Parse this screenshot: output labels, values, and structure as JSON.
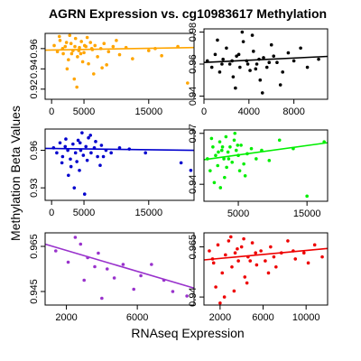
{
  "figure": {
    "title": "AGRN Expression vs. cg10983617 Methylation",
    "xlabel": "RNAseq Expression",
    "ylabel": "Methylation Beta Values"
  },
  "chart_data": [
    {
      "type": "scatter",
      "color": "#FFA500",
      "xlim": [
        -1000,
        22000
      ],
      "ylim": [
        0.91,
        0.975
      ],
      "xticks": [
        0,
        5000,
        15000
      ],
      "yticks": [
        0.92,
        0.94,
        0.96
      ],
      "trend": {
        "y_at_xmin": 0.9585,
        "y_at_xmax": 0.961
      },
      "points": [
        [
          400,
          0.963
        ],
        [
          900,
          0.957
        ],
        [
          1300,
          0.968
        ],
        [
          1800,
          0.955
        ],
        [
          2100,
          0.962
        ],
        [
          2600,
          0.949
        ],
        [
          3000,
          0.965
        ],
        [
          3300,
          0.958
        ],
        [
          3700,
          0.97
        ],
        [
          4000,
          0.952
        ],
        [
          4300,
          0.961
        ],
        [
          4600,
          0.967
        ],
        [
          5000,
          0.956
        ],
        [
          5300,
          0.962
        ],
        [
          5700,
          0.945
        ],
        [
          6000,
          0.966
        ],
        [
          6300,
          0.959
        ],
        [
          6700,
          0.963
        ],
        [
          7100,
          0.952
        ],
        [
          7600,
          0.96
        ],
        [
          8100,
          0.965
        ],
        [
          8800,
          0.957
        ],
        [
          9500,
          0.962
        ],
        [
          10500,
          0.954
        ],
        [
          11500,
          0.961
        ],
        [
          1200,
          0.972
        ],
        [
          2400,
          0.94
        ],
        [
          3500,
          0.93
        ],
        [
          4800,
          0.947
        ],
        [
          6500,
          0.935
        ],
        [
          3900,
          0.922
        ],
        [
          2800,
          0.973
        ],
        [
          5500,
          0.971
        ],
        [
          7800,
          0.941
        ],
        [
          12500,
          0.95
        ],
        [
          15000,
          0.958
        ],
        [
          17000,
          0.953
        ],
        [
          19500,
          0.962
        ],
        [
          21000,
          0.926
        ],
        [
          16000,
          0.96
        ],
        [
          10000,
          0.968
        ],
        [
          8500,
          0.944
        ],
        [
          1700,
          0.96
        ],
        [
          3100,
          0.955
        ],
        [
          4200,
          0.958
        ],
        [
          5100,
          0.963
        ],
        [
          6200,
          0.96
        ],
        [
          2300,
          0.966
        ],
        [
          3600,
          0.962
        ],
        [
          4500,
          0.955
        ]
      ]
    },
    {
      "type": "scatter",
      "color": "#000000",
      "xlim": [
        0,
        11000
      ],
      "ylim": [
        0.938,
        0.982
      ],
      "xticks": [
        0,
        4000,
        8000
      ],
      "yticks": [
        0.94,
        0.96,
        0.98
      ],
      "trend": {
        "y_at_xmin": 0.961,
        "y_at_xmax": 0.9648
      },
      "points": [
        [
          300,
          0.962
        ],
        [
          700,
          0.958
        ],
        [
          1000,
          0.966
        ],
        [
          1400,
          0.955
        ],
        [
          1700,
          0.963
        ],
        [
          2000,
          0.97
        ],
        [
          2300,
          0.96
        ],
        [
          2600,
          0.952
        ],
        [
          2900,
          0.965
        ],
        [
          3200,
          0.958
        ],
        [
          3500,
          0.974
        ],
        [
          3800,
          0.962
        ],
        [
          4100,
          0.956
        ],
        [
          4400,
          0.968
        ],
        [
          4700,
          0.96
        ],
        [
          5000,
          0.95
        ],
        [
          5300,
          0.964
        ],
        [
          5600,
          0.958
        ],
        [
          6000,
          0.972
        ],
        [
          6500,
          0.961
        ],
        [
          7000,
          0.955
        ],
        [
          7500,
          0.967
        ],
        [
          8000,
          0.962
        ],
        [
          8600,
          0.97
        ],
        [
          9200,
          0.958
        ],
        [
          10200,
          0.963
        ],
        [
          1200,
          0.975
        ],
        [
          2800,
          0.945
        ],
        [
          3400,
          0.98
        ],
        [
          5200,
          0.942
        ],
        [
          4300,
          0.978
        ],
        [
          6800,
          0.947
        ],
        [
          2500,
          0.962
        ],
        [
          3100,
          0.966
        ],
        [
          4600,
          0.957
        ],
        [
          5800,
          0.961
        ],
        [
          1600,
          0.96
        ],
        [
          3900,
          0.96
        ],
        [
          4900,
          0.963
        ],
        [
          6200,
          0.965
        ]
      ]
    },
    {
      "type": "scatter",
      "color": "#0000CD",
      "xlim": [
        -1000,
        22000
      ],
      "ylim": [
        0.92,
        0.977
      ],
      "xticks": [
        0,
        5000,
        15000
      ],
      "yticks": [
        0.93,
        0.96
      ],
      "trend": {
        "y_at_xmin": 0.9615,
        "y_at_xmax": 0.96
      },
      "points": [
        [
          300,
          0.962
        ],
        [
          800,
          0.958
        ],
        [
          1300,
          0.966
        ],
        [
          1700,
          0.955
        ],
        [
          2100,
          0.963
        ],
        [
          2500,
          0.96
        ],
        [
          2900,
          0.953
        ],
        [
          3300,
          0.965
        ],
        [
          3700,
          0.958
        ],
        [
          4100,
          0.968
        ],
        [
          4500,
          0.96
        ],
        [
          4900,
          0.956
        ],
        [
          5300,
          0.963
        ],
        [
          5700,
          0.97
        ],
        [
          6100,
          0.958
        ],
        [
          6600,
          0.962
        ],
        [
          7100,
          0.955
        ],
        [
          7700,
          0.964
        ],
        [
          8400,
          0.96
        ],
        [
          9200,
          0.958
        ],
        [
          10500,
          0.962
        ],
        [
          2600,
          0.94
        ],
        [
          3500,
          0.93
        ],
        [
          4300,
          0.944
        ],
        [
          5100,
          0.925
        ],
        [
          3000,
          0.947
        ],
        [
          6000,
          0.972
        ],
        [
          4700,
          0.974
        ],
        [
          1600,
          0.95
        ],
        [
          14500,
          0.958
        ],
        [
          20000,
          0.95
        ],
        [
          21500,
          0.944
        ],
        [
          12000,
          0.961
        ],
        [
          5500,
          0.952
        ],
        [
          7500,
          0.948
        ],
        [
          2200,
          0.969
        ],
        [
          3900,
          0.951
        ],
        [
          4400,
          0.966
        ],
        [
          6800,
          0.967
        ],
        [
          8000,
          0.955
        ]
      ]
    },
    {
      "type": "scatter",
      "color": "#00EE00",
      "xlim": [
        0,
        18000
      ],
      "ylim": [
        0.93,
        0.972
      ],
      "xticks": [
        5000,
        15000
      ],
      "yticks": [
        0.94,
        0.97
      ],
      "trend": {
        "y_at_xmin": 0.9545,
        "y_at_xmax": 0.9645
      },
      "points": [
        [
          500,
          0.955
        ],
        [
          900,
          0.948
        ],
        [
          1300,
          0.962
        ],
        [
          1700,
          0.957
        ],
        [
          2000,
          0.951
        ],
        [
          2300,
          0.965
        ],
        [
          2600,
          0.96
        ],
        [
          2900,
          0.955
        ],
        [
          3200,
          0.968
        ],
        [
          3500,
          0.959
        ],
        [
          3800,
          0.962
        ],
        [
          4100,
          0.953
        ],
        [
          4400,
          0.966
        ],
        [
          4700,
          0.96
        ],
        [
          5000,
          0.957
        ],
        [
          5400,
          0.963
        ],
        [
          5800,
          0.952
        ],
        [
          6300,
          0.958
        ],
        [
          6900,
          0.961
        ],
        [
          7600,
          0.955
        ],
        [
          8400,
          0.96
        ],
        [
          9500,
          0.954
        ],
        [
          11000,
          0.966
        ],
        [
          13000,
          0.961
        ],
        [
          15000,
          0.933
        ],
        [
          17500,
          0.965
        ],
        [
          1500,
          0.941
        ],
        [
          2400,
          0.938
        ],
        [
          3000,
          0.944
        ],
        [
          1100,
          0.967
        ],
        [
          4500,
          0.97
        ],
        [
          6000,
          0.945
        ],
        [
          2700,
          0.962
        ],
        [
          3600,
          0.955
        ],
        [
          4900,
          0.963
        ],
        [
          5200,
          0.948
        ],
        [
          2100,
          0.959
        ],
        [
          3300,
          0.95
        ]
      ]
    },
    {
      "type": "scatter",
      "color": "#9932CC",
      "xlim": [
        800,
        9200
      ],
      "ylim": [
        0.939,
        0.971
      ],
      "xticks": [
        2000,
        6000
      ],
      "yticks": [
        0.945,
        0.965
      ],
      "trend": {
        "y_at_xmin": 0.966,
        "y_at_xmax": 0.9465
      },
      "points": [
        [
          1400,
          0.963
        ],
        [
          2100,
          0.958
        ],
        [
          2500,
          0.969
        ],
        [
          2800,
          0.966
        ],
        [
          3200,
          0.96
        ],
        [
          3600,
          0.956
        ],
        [
          3800,
          0.962
        ],
        [
          4300,
          0.955
        ],
        [
          4700,
          0.951
        ],
        [
          5200,
          0.957
        ],
        [
          5800,
          0.946
        ],
        [
          6200,
          0.952
        ],
        [
          6800,
          0.957
        ],
        [
          7500,
          0.95
        ],
        [
          8000,
          0.945
        ],
        [
          8800,
          0.943
        ],
        [
          4000,
          0.942
        ],
        [
          3000,
          0.95
        ]
      ]
    },
    {
      "type": "scatter",
      "color": "#EE0000",
      "xlim": [
        500,
        12000
      ],
      "ylim": [
        0.936,
        0.972
      ],
      "xticks": [
        2000,
        6000,
        10000
      ],
      "yticks": [
        0.94,
        0.965
      ],
      "trend": {
        "y_at_xmin": 0.9585,
        "y_at_xmax": 0.9642
      },
      "points": [
        [
          1000,
          0.963
        ],
        [
          1400,
          0.957
        ],
        [
          1800,
          0.966
        ],
        [
          2200,
          0.952
        ],
        [
          2500,
          0.961
        ],
        [
          2800,
          0.968
        ],
        [
          3100,
          0.955
        ],
        [
          3400,
          0.962
        ],
        [
          3700,
          0.958
        ],
        [
          4000,
          0.965
        ],
        [
          4300,
          0.95
        ],
        [
          4600,
          0.96
        ],
        [
          5000,
          0.967
        ],
        [
          5400,
          0.956
        ],
        [
          5800,
          0.963
        ],
        [
          6200,
          0.958
        ],
        [
          6700,
          0.965
        ],
        [
          7200,
          0.955
        ],
        [
          7700,
          0.962
        ],
        [
          8300,
          0.968
        ],
        [
          9000,
          0.959
        ],
        [
          9800,
          0.962
        ],
        [
          10800,
          0.966
        ],
        [
          11500,
          0.96
        ],
        [
          1600,
          0.945
        ],
        [
          2400,
          0.94
        ],
        [
          3300,
          0.943
        ],
        [
          4500,
          0.947
        ],
        [
          2000,
          0.937
        ],
        [
          3000,
          0.97
        ],
        [
          4200,
          0.969
        ],
        [
          5300,
          0.962
        ],
        [
          6500,
          0.952
        ],
        [
          1300,
          0.959
        ],
        [
          3600,
          0.964
        ],
        [
          4800,
          0.958
        ],
        [
          7000,
          0.96
        ],
        [
          8800,
          0.963
        ],
        [
          10200,
          0.957
        ]
      ]
    }
  ]
}
